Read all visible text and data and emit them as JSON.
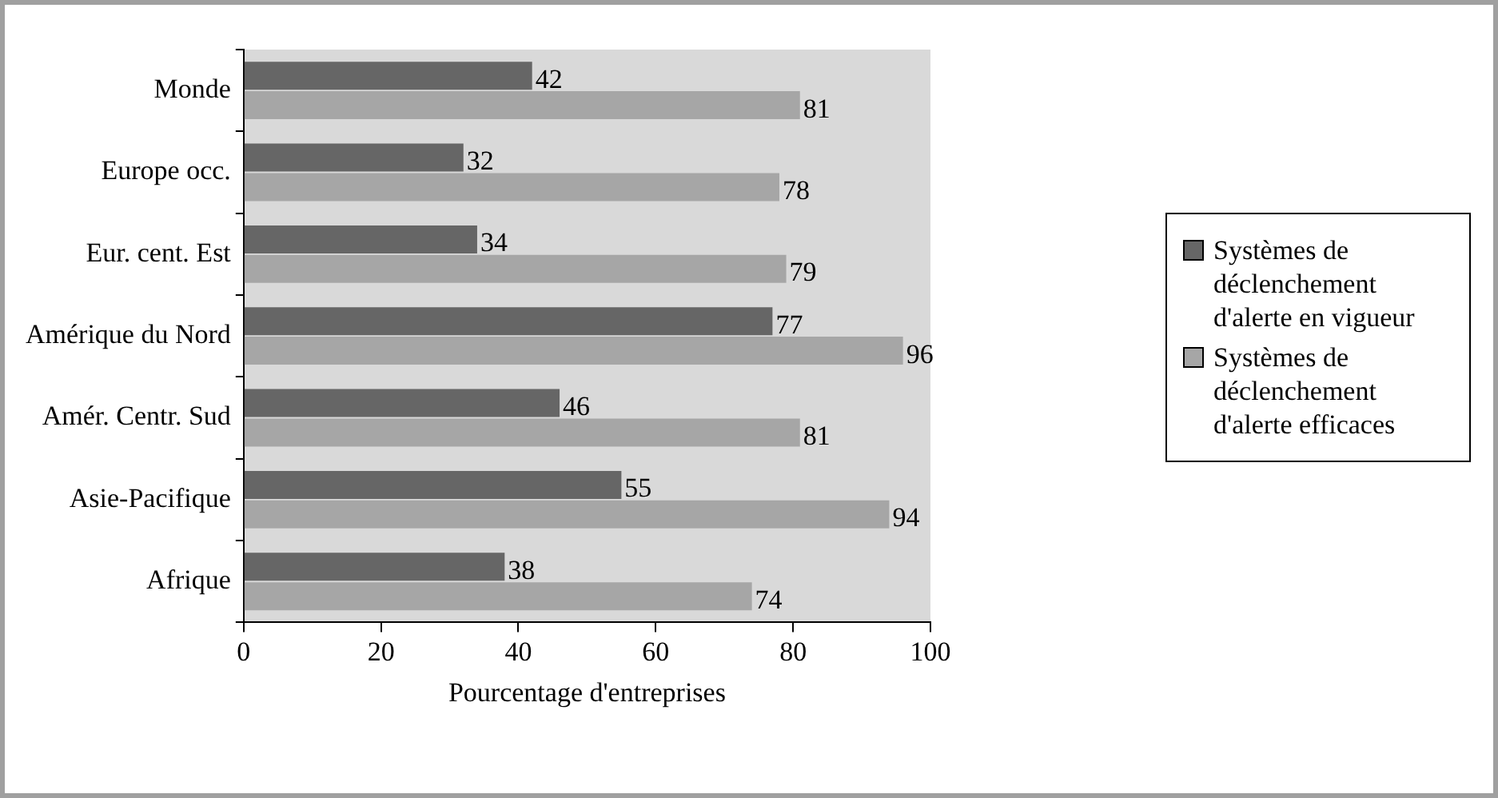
{
  "chart_data": {
    "type": "bar",
    "orientation": "horizontal",
    "xlabel": "Pourcentage d'entreprises",
    "categories": [
      "Monde",
      "Europe occ.",
      "Eur. cent. Est",
      "Amérique du Nord",
      "Amér. Centr. Sud",
      "Asie-Pacifique",
      "Afrique"
    ],
    "series": [
      {
        "name": "Systèmes de déclenchement d'alerte en vigueur",
        "color": "#666666",
        "values": [
          42,
          32,
          34,
          77,
          46,
          55,
          38
        ]
      },
      {
        "name": "Systèmes de déclenchement d'alerte efficaces",
        "color": "#a6a6a6",
        "values": [
          81,
          78,
          79,
          96,
          81,
          94,
          74
        ]
      }
    ],
    "xlim": [
      0,
      100
    ],
    "xticks": [
      0,
      20,
      40,
      60,
      80,
      100
    ],
    "data_labels": true,
    "legend": "right",
    "grid": false
  }
}
